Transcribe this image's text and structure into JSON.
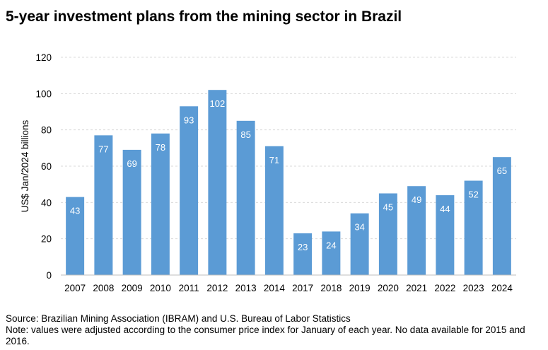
{
  "title": "5-year investment plans from the mining sector in Brazil",
  "footer": {
    "source": "Source: Brazilian Mining Association (IBRAM) and U.S. Bureau of Labor Statistics",
    "note": "Note: values were adjusted according to the consumer price index for January of each year. No data available for 2015 and 2016."
  },
  "chart_data": {
    "type": "bar",
    "title": "5-year investment plans from the mining sector in Brazil",
    "xlabel": "",
    "ylabel": "US$ Jan/2024 billions",
    "ylim": [
      0,
      120
    ],
    "yticks": [
      0,
      20,
      40,
      60,
      80,
      100,
      120
    ],
    "grid": true,
    "categories": [
      "2007",
      "2008",
      "2009",
      "2010",
      "2011",
      "2012",
      "2013",
      "2014",
      "2017",
      "2018",
      "2019",
      "2020",
      "2021",
      "2022",
      "2023",
      "2024"
    ],
    "values": [
      43,
      77,
      69,
      78,
      93,
      102,
      85,
      71,
      23,
      24,
      34,
      45,
      49,
      44,
      52,
      65
    ],
    "bar_color": "#5b9bd5",
    "label_color": "#ffffff",
    "grid_color": "#d9d9d9",
    "axis_color": "#bfbfbf"
  }
}
